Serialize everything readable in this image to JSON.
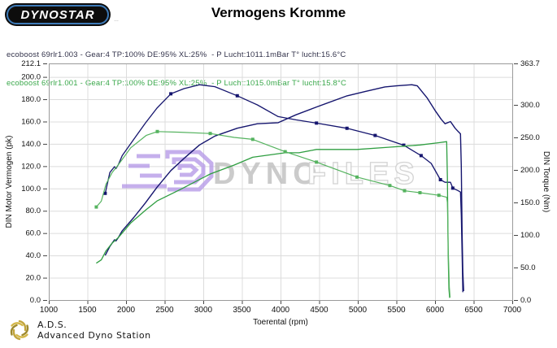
{
  "header": {
    "logo_text": "DYNOSTAR",
    "logo_subtext": "…",
    "title": "Vermogens Kromme"
  },
  "legend": {
    "runs": [
      {
        "label": "ecoboost 69rlr1.003 - Gear:4 TP:100% DE:95% XL:25%  - P Lucht:1011.1mBar T° lucht:15.6°C",
        "color": "#32324a"
      },
      {
        "label": "ecoboost 69rlr1.001 - Gear:4 TP:100% DE:95% XL:25%  - P Lucht:1015.0mBar T° lucht:15.8°C",
        "color": "#3aa84b"
      }
    ]
  },
  "watermark": {
    "text_solid": "DYNO",
    "text_outline": "FILES",
    "logo_color": "#b79ce8",
    "solid_color": "#c2c2c2",
    "outline_color": "#cdcdcd"
  },
  "footer": {
    "abbr": "A.D.S.",
    "name": "Advanced Dyno Station",
    "logo_colors": [
      "#c2a53c",
      "#9e8a2e",
      "#d4b84a"
    ]
  },
  "chart_data": {
    "type": "line",
    "title": "Vermogens Kromme",
    "xlabel": "Toerental (rpm)",
    "ylabel_left": "DIN Motor Vermogen (pk)",
    "ylabel_right": "DIN Torque (Nm)",
    "xlim": [
      1000,
      7000
    ],
    "x_ticks": [
      1000,
      1500,
      2000,
      2500,
      3000,
      3500,
      4000,
      4500,
      5000,
      5500,
      6000,
      6500,
      7000
    ],
    "ylim_left": [
      0,
      212.1
    ],
    "left_ticks": [
      212.1,
      200,
      180,
      160,
      140,
      120,
      100,
      80,
      60,
      40,
      20,
      0
    ],
    "ylim_right": [
      0,
      363.7
    ],
    "right_ticks": [
      363.7,
      300,
      250,
      200,
      150,
      100,
      50,
      0
    ],
    "grid": true,
    "colors": {
      "run1": "#15156e",
      "run2_power": "#2f9e41",
      "run2_torque": "#55b35f"
    },
    "series": [
      {
        "name": "power-run1-003",
        "axis": "left",
        "color": "#15156e",
        "width": 1.4,
        "points": [
          [
            1730,
            40
          ],
          [
            1790,
            48
          ],
          [
            1850,
            54
          ],
          [
            1870,
            53
          ],
          [
            1900,
            56
          ],
          [
            1950,
            62
          ],
          [
            2100,
            74
          ],
          [
            2250,
            87
          ],
          [
            2400,
            101
          ],
          [
            2580,
            116
          ],
          [
            2750,
            127
          ],
          [
            2950,
            139
          ],
          [
            3150,
            147
          ],
          [
            3440,
            154
          ],
          [
            3700,
            158
          ],
          [
            3970,
            159
          ],
          [
            4200,
            166
          ],
          [
            4465,
            173
          ],
          [
            4860,
            183
          ],
          [
            5100,
            187
          ],
          [
            5225,
            189
          ],
          [
            5350,
            191
          ],
          [
            5500,
            192
          ],
          [
            5700,
            193
          ],
          [
            5770,
            192
          ],
          [
            5900,
            181
          ],
          [
            6000,
            170
          ],
          [
            6080,
            162
          ],
          [
            6130,
            158
          ],
          [
            6200,
            160
          ],
          [
            6260,
            154
          ],
          [
            6300,
            151
          ],
          [
            6330,
            149
          ],
          [
            6340,
            120
          ],
          [
            6350,
            60
          ],
          [
            6360,
            25
          ],
          [
            6370,
            8
          ]
        ]
      },
      {
        "name": "torque-run1-003",
        "axis": "right",
        "color": "#15156e",
        "width": 1.3,
        "points": [
          [
            1730,
            164,
            1
          ],
          [
            1790,
            196
          ],
          [
            1850,
            205
          ],
          [
            1870,
            202
          ],
          [
            1900,
            208
          ],
          [
            1950,
            222
          ],
          [
            2100,
            247
          ],
          [
            2250,
            272
          ],
          [
            2400,
            295
          ],
          [
            2580,
            317,
            1
          ],
          [
            2750,
            325
          ],
          [
            2950,
            331
          ],
          [
            3150,
            328
          ],
          [
            3440,
            314,
            1
          ],
          [
            3700,
            300
          ],
          [
            3970,
            282
          ],
          [
            4200,
            277
          ],
          [
            4465,
            272,
            1
          ],
          [
            4860,
            264,
            1
          ],
          [
            5225,
            253,
            1
          ],
          [
            5595,
            238,
            1
          ],
          [
            5820,
            222,
            1
          ],
          [
            5950,
            210
          ],
          [
            6070,
            185,
            1
          ],
          [
            6130,
            181
          ],
          [
            6200,
            181
          ],
          [
            6230,
            172,
            1
          ],
          [
            6300,
            168
          ],
          [
            6330,
            166
          ],
          [
            6340,
            130
          ],
          [
            6350,
            70
          ],
          [
            6360,
            12
          ]
        ]
      },
      {
        "name": "power-run2-001",
        "axis": "left",
        "color": "#2f9e41",
        "width": 1.3,
        "points": [
          [
            1615,
            33
          ],
          [
            1680,
            36
          ],
          [
            1740,
            44
          ],
          [
            1820,
            51
          ],
          [
            1900,
            56
          ],
          [
            2060,
            69
          ],
          [
            2260,
            81
          ],
          [
            2405,
            89
          ],
          [
            2700,
            99
          ],
          [
            3090,
            113
          ],
          [
            3400,
            121
          ],
          [
            3640,
            128
          ],
          [
            4060,
            132
          ],
          [
            4240,
            132
          ],
          [
            4465,
            135
          ],
          [
            4990,
            135
          ],
          [
            5415,
            137
          ],
          [
            5605,
            138
          ],
          [
            5805,
            139
          ],
          [
            6050,
            141
          ],
          [
            6150,
            142
          ],
          [
            6160,
            110
          ],
          [
            6170,
            40
          ],
          [
            6180,
            10
          ],
          [
            6190,
            2
          ]
        ]
      },
      {
        "name": "torque-run2-001",
        "axis": "right",
        "color": "#55b35f",
        "width": 1.2,
        "points": [
          [
            1615,
            143,
            1
          ],
          [
            1680,
            152
          ],
          [
            1740,
            178
          ],
          [
            1820,
            196
          ],
          [
            1900,
            208
          ],
          [
            2060,
            234
          ],
          [
            2260,
            253
          ],
          [
            2405,
            259,
            1
          ],
          [
            2700,
            258
          ],
          [
            3090,
            256,
            1
          ],
          [
            3400,
            250
          ],
          [
            3640,
            247,
            1
          ],
          [
            4060,
            228,
            1
          ],
          [
            4465,
            212,
            1
          ],
          [
            4990,
            189,
            1
          ],
          [
            5415,
            176,
            1
          ],
          [
            5605,
            168,
            1
          ],
          [
            5805,
            165,
            1
          ],
          [
            6050,
            161,
            1
          ],
          [
            6150,
            158
          ],
          [
            6160,
            150
          ],
          [
            6170,
            80
          ],
          [
            6185,
            20
          ],
          [
            6195,
            4
          ]
        ]
      }
    ],
    "peaks": {
      "max_power_pk": 192.8,
      "max_torque_nm": 330.6
    }
  }
}
